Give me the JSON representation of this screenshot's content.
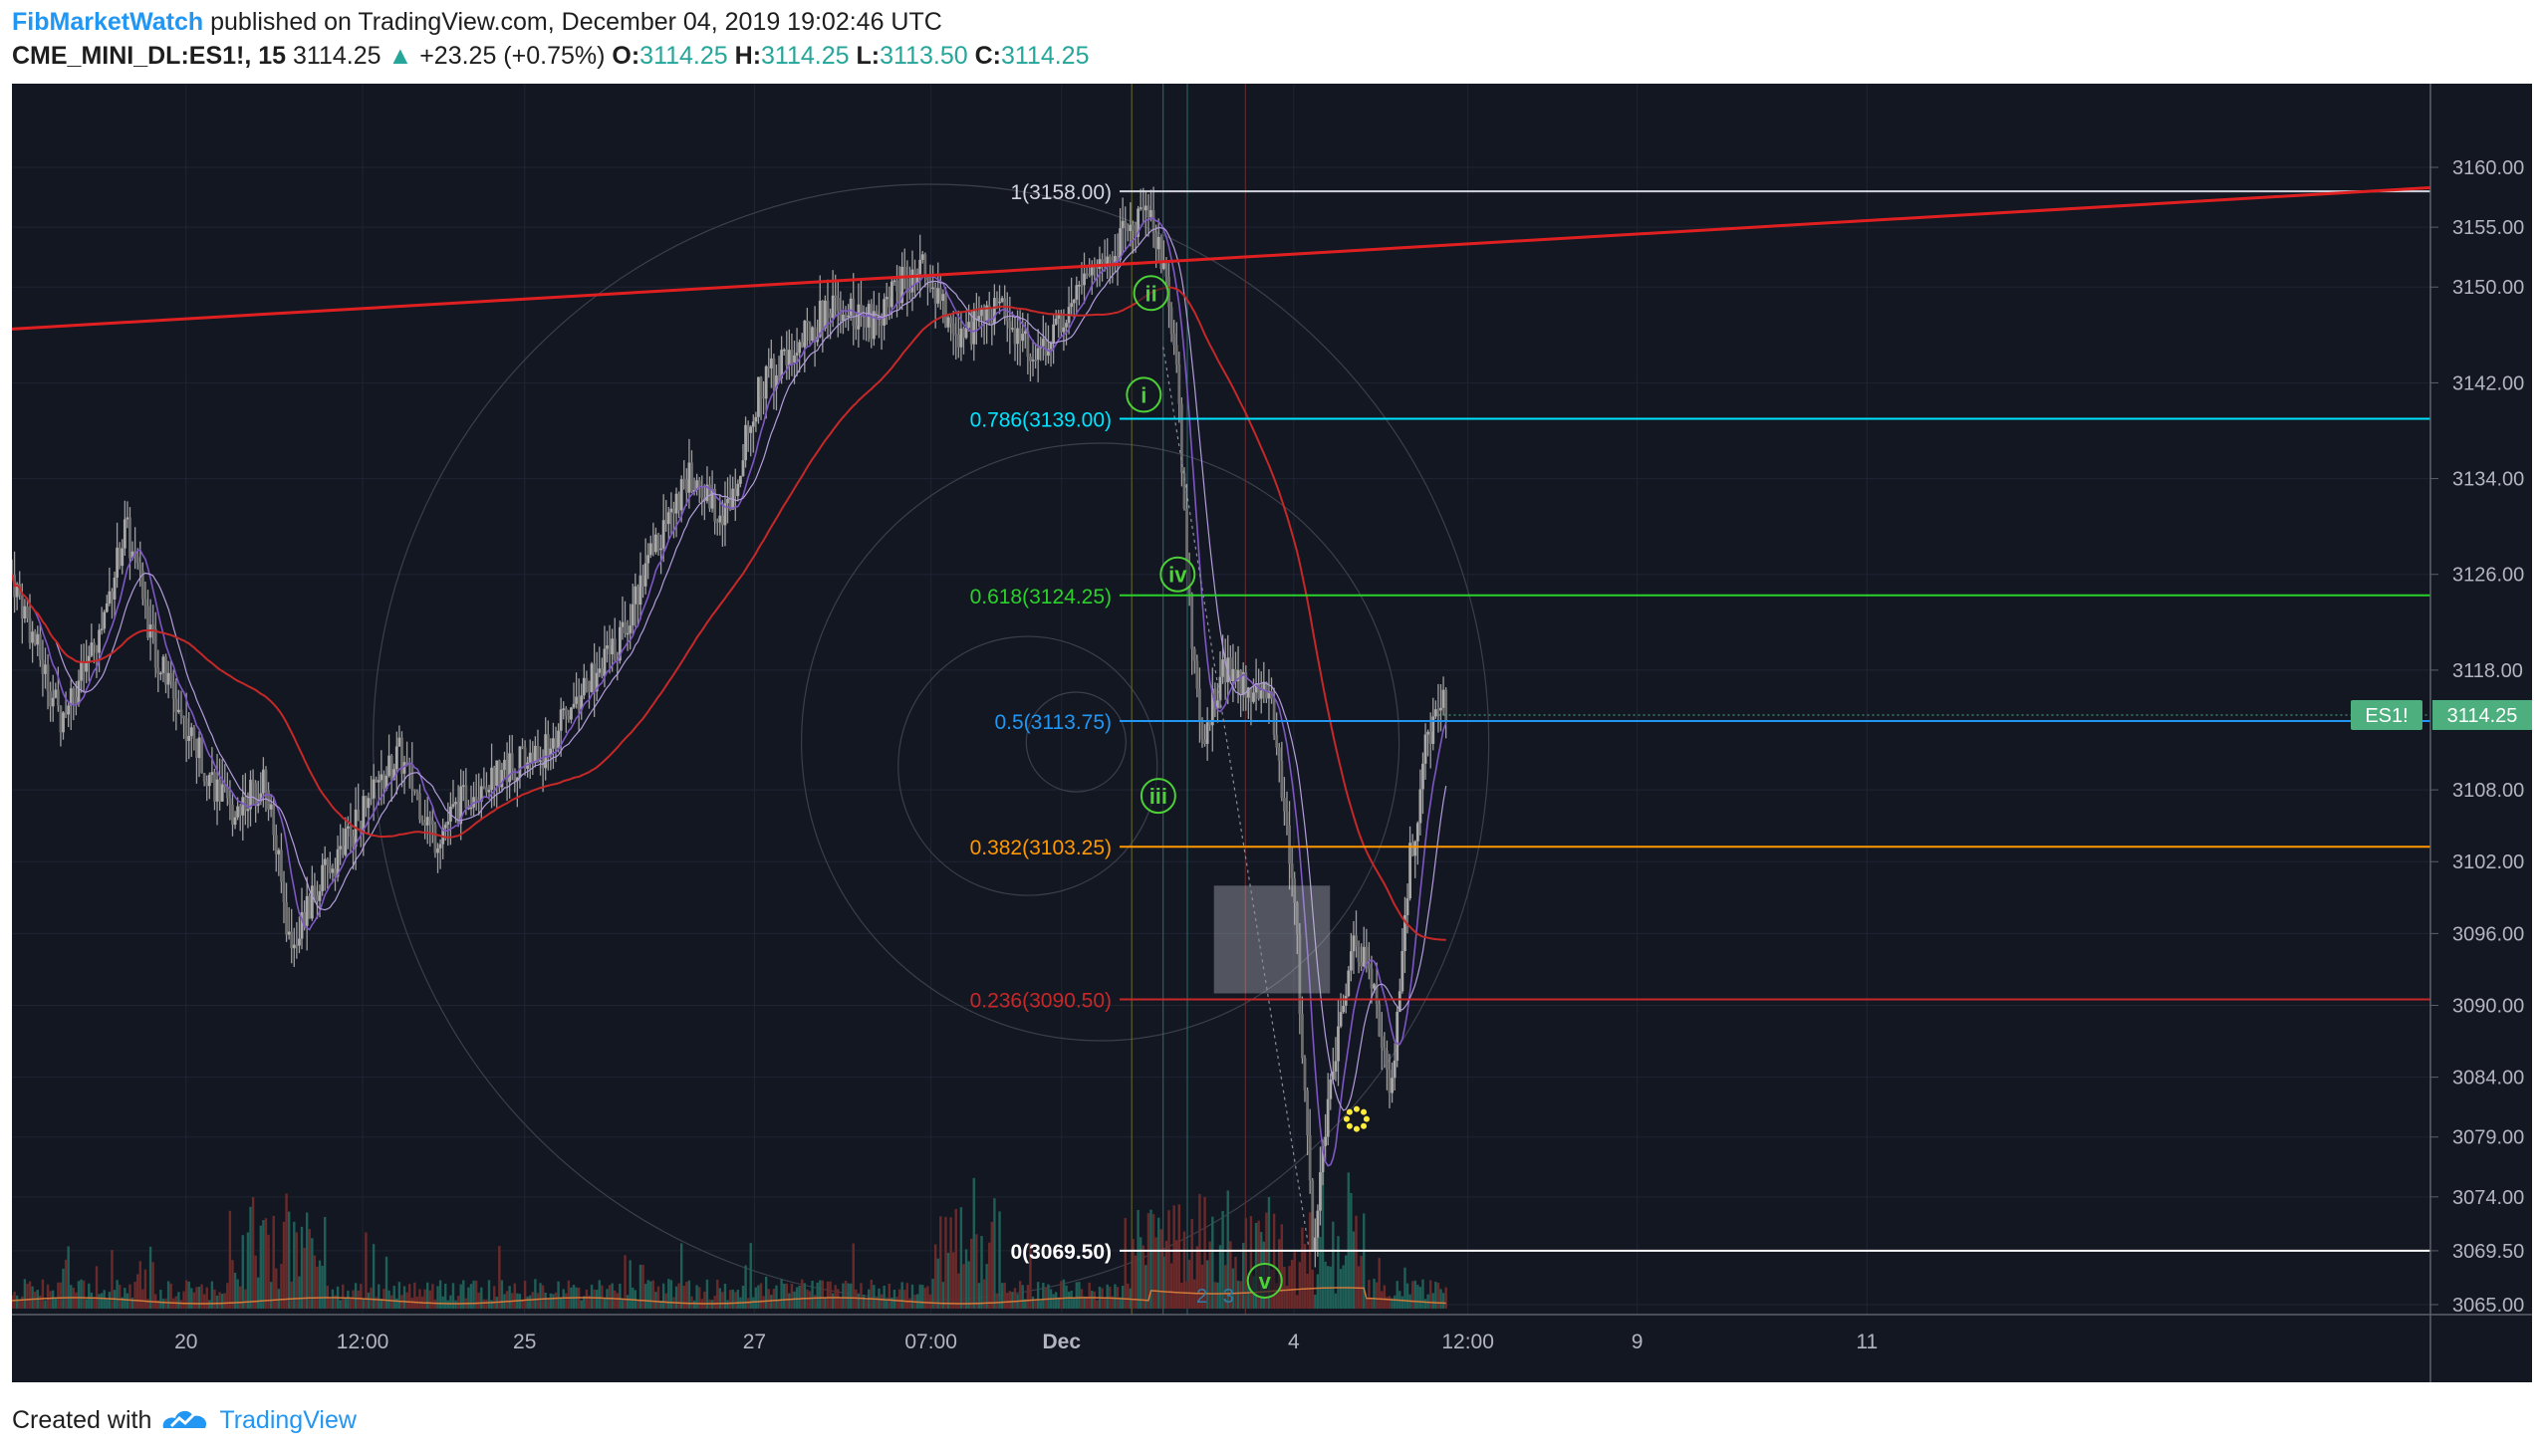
{
  "header": {
    "author": "FibMarketWatch",
    "published_text": " published on TradingView.com, December 04, 2019 19:02:46 UTC",
    "symbol": "CME_MINI_DL:ES1!, 15",
    "last": "3114.25",
    "change_arrow": "▲",
    "change": "+23.25 (+0.75%)",
    "o_label": "O:",
    "o_value": "3114.25",
    "h_label": "H:",
    "h_value": "3114.25",
    "l_label": "L:",
    "l_value": "3113.50",
    "c_label": "C:",
    "c_value": "3114.25"
  },
  "footer": {
    "created_with": "Created with",
    "brand": "TradingView"
  },
  "colors": {
    "background": "#131722",
    "grid": "#1f2433",
    "up": "#9e9e9e",
    "trendline": "#e02020",
    "ma_red": "#c62828",
    "ma_purple": "#7e57c2",
    "fib_1": "#d1d4dc",
    "fib_786": "#00e5ff",
    "fib_618": "#2bd12b",
    "fib_5": "#2196f3",
    "fib_382": "#ff9800",
    "fib_236": "#c62828",
    "fib_0": "#ffffff",
    "wave_label": "#4cd137",
    "price_tag": "#4caf7d",
    "volume_ma": "#d17a3a"
  },
  "chart_data": {
    "type": "candlestick",
    "symbol": "ES1!",
    "timeframe": "15",
    "price_axis": {
      "ticks": [
        "3160.00",
        "3155.00",
        "3150.00",
        "3142.00",
        "3134.00",
        "3126.00",
        "3118.00",
        "3108.00",
        "3102.00",
        "3096.00",
        "3090.00",
        "3084.00",
        "3079.00",
        "3074.00",
        "3069.50",
        "3065.00"
      ],
      "ylim": [
        3065,
        3162
      ]
    },
    "time_axis": {
      "ticks": [
        "20",
        "12:00",
        "25",
        "27",
        "07:00",
        "Dec",
        "4",
        "12:00",
        "9",
        "11"
      ]
    },
    "last_price_label": {
      "symbol": "ES1!",
      "price": "3114.25"
    },
    "fib_levels": [
      {
        "label": "1(3158.00)",
        "ratio": 1,
        "price": 3158.0,
        "color_key": "fib_1"
      },
      {
        "label": "0.786(3139.00)",
        "ratio": 0.786,
        "price": 3139.0,
        "color_key": "fib_786"
      },
      {
        "label": "0.618(3124.25)",
        "ratio": 0.618,
        "price": 3124.25,
        "color_key": "fib_618"
      },
      {
        "label": "0.5(3113.75)",
        "ratio": 0.5,
        "price": 3113.75,
        "color_key": "fib_5"
      },
      {
        "label": "0.382(3103.25)",
        "ratio": 0.382,
        "price": 3103.25,
        "color_key": "fib_382"
      },
      {
        "label": "0.236(3090.50)",
        "ratio": 0.236,
        "price": 3090.5,
        "color_key": "fib_236"
      },
      {
        "label": "0(3069.50)",
        "ratio": 0,
        "price": 3069.5,
        "color_key": "fib_0"
      }
    ],
    "wave_labels": [
      {
        "label": "ii",
        "price": 3149.5
      },
      {
        "label": "i",
        "price": 3141.0
      },
      {
        "label": "iv",
        "price": 3126.0
      },
      {
        "label": "iii",
        "price": 3107.5
      },
      {
        "label": "v",
        "price": 3067.0
      }
    ],
    "volume_labels": [
      "2",
      "3"
    ],
    "price_path": [
      {
        "x": 0.0,
        "p": 3126
      },
      {
        "x": 0.02,
        "p": 3114
      },
      {
        "x": 0.035,
        "p": 3120
      },
      {
        "x": 0.047,
        "p": 3130
      },
      {
        "x": 0.06,
        "p": 3119
      },
      {
        "x": 0.075,
        "p": 3112
      },
      {
        "x": 0.09,
        "p": 3106
      },
      {
        "x": 0.105,
        "p": 3109
      },
      {
        "x": 0.115,
        "p": 3095
      },
      {
        "x": 0.13,
        "p": 3101
      },
      {
        "x": 0.145,
        "p": 3106
      },
      {
        "x": 0.16,
        "p": 3111
      },
      {
        "x": 0.175,
        "p": 3104
      },
      {
        "x": 0.19,
        "p": 3108
      },
      {
        "x": 0.205,
        "p": 3110
      },
      {
        "x": 0.22,
        "p": 3111
      },
      {
        "x": 0.235,
        "p": 3116
      },
      {
        "x": 0.25,
        "p": 3120
      },
      {
        "x": 0.265,
        "p": 3128
      },
      {
        "x": 0.28,
        "p": 3134
      },
      {
        "x": 0.295,
        "p": 3131
      },
      {
        "x": 0.31,
        "p": 3142
      },
      {
        "x": 0.325,
        "p": 3145
      },
      {
        "x": 0.34,
        "p": 3149
      },
      {
        "x": 0.355,
        "p": 3147
      },
      {
        "x": 0.375,
        "p": 3152
      },
      {
        "x": 0.39,
        "p": 3146
      },
      {
        "x": 0.41,
        "p": 3148
      },
      {
        "x": 0.425,
        "p": 3144
      },
      {
        "x": 0.44,
        "p": 3150
      },
      {
        "x": 0.455,
        "p": 3153
      },
      {
        "x": 0.47,
        "p": 3157
      },
      {
        "x": 0.477,
        "p": 3151
      },
      {
        "x": 0.482,
        "p": 3143
      },
      {
        "x": 0.486,
        "p": 3125
      },
      {
        "x": 0.492,
        "p": 3112
      },
      {
        "x": 0.5,
        "p": 3118
      },
      {
        "x": 0.51,
        "p": 3117
      },
      {
        "x": 0.52,
        "p": 3116
      },
      {
        "x": 0.53,
        "p": 3100
      },
      {
        "x": 0.538,
        "p": 3069.5
      },
      {
        "x": 0.545,
        "p": 3083
      },
      {
        "x": 0.555,
        "p": 3095
      },
      {
        "x": 0.562,
        "p": 3093
      },
      {
        "x": 0.57,
        "p": 3082
      },
      {
        "x": 0.578,
        "p": 3102
      },
      {
        "x": 0.585,
        "p": 3112
      },
      {
        "x": 0.592,
        "p": 3115
      }
    ]
  }
}
